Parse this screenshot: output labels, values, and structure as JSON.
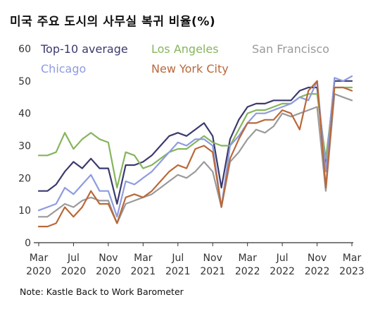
{
  "title": "미국 주요 도시의 사무실 복귀 비율(%)",
  "note": "Note: Kastle Back to Work Barometer",
  "chart_data": {
    "type": "line",
    "title": "미국 주요 도시의 사무실 복귀 비율(%)",
    "xlabel": "",
    "ylabel": "",
    "ylim": [
      0,
      60
    ],
    "yticks": [
      0,
      10,
      20,
      30,
      40,
      50,
      60
    ],
    "x_tick_labels": [
      [
        "Mar",
        "2020"
      ],
      [
        "Jul",
        "2020"
      ],
      [
        "Nov",
        "2020"
      ],
      [
        "Mar",
        "2021"
      ],
      [
        "Jul",
        "2021"
      ],
      [
        "Nov",
        "2021"
      ],
      [
        "Mar",
        "2022"
      ],
      [
        "Jul",
        "2022"
      ],
      [
        "Nov",
        "2022"
      ],
      [
        "Mar",
        "2023"
      ]
    ],
    "x": [
      "2020-03",
      "2020-04",
      "2020-05",
      "2020-06",
      "2020-07",
      "2020-08",
      "2020-09",
      "2020-10",
      "2020-11",
      "2020-12",
      "2021-01",
      "2021-02",
      "2021-03",
      "2021-04",
      "2021-05",
      "2021-06",
      "2021-07",
      "2021-08",
      "2021-09",
      "2021-10",
      "2021-11",
      "2021-12",
      "2022-01",
      "2022-02",
      "2022-03",
      "2022-04",
      "2022-05",
      "2022-06",
      "2022-07",
      "2022-08",
      "2022-09",
      "2022-10",
      "2022-11",
      "2022-12",
      "2023-01",
      "2023-02",
      "2023-03"
    ],
    "legend_placement": "top",
    "grid": false,
    "series": [
      {
        "name": "Top-10 average",
        "color": "#3b3a6e",
        "values": [
          16,
          16,
          18,
          22,
          25,
          23,
          26,
          23,
          23,
          12,
          24,
          24,
          25,
          27,
          30,
          33,
          34,
          33,
          35,
          37,
          33,
          17,
          32,
          38,
          42,
          43,
          43,
          44,
          44,
          44,
          47,
          48,
          48,
          24,
          50,
          50,
          50
        ]
      },
      {
        "name": "Los Angeles",
        "color": "#86b55c",
        "values": [
          27,
          27,
          28,
          34,
          29,
          32,
          34,
          32,
          31,
          17,
          28,
          27,
          23,
          24,
          26,
          28,
          29,
          29,
          31,
          33,
          31,
          30,
          30,
          35,
          40,
          41,
          41,
          42,
          43,
          43,
          45,
          46,
          46,
          26,
          48,
          48,
          48
        ]
      },
      {
        "name": "San Francisco",
        "color": "#9a9a9a",
        "values": [
          8,
          8,
          10,
          12,
          11,
          13,
          14,
          13,
          13,
          6,
          12,
          13,
          14,
          15,
          17,
          19,
          21,
          20,
          22,
          25,
          22,
          11,
          25,
          28,
          32,
          35,
          34,
          36,
          40,
          39,
          40,
          41,
          42,
          16,
          46,
          45,
          44
        ]
      },
      {
        "name": "Chicago",
        "color": "#8e9be0",
        "values": [
          10,
          11,
          12,
          17,
          15,
          18,
          21,
          16,
          16,
          8,
          19,
          18,
          20,
          22,
          25,
          28,
          31,
          30,
          32,
          32,
          30,
          11,
          30,
          33,
          37,
          40,
          40,
          41,
          42,
          43,
          45,
          44,
          50,
          22,
          51,
          50,
          51.5
        ]
      },
      {
        "name": "New York City",
        "color": "#b9683a",
        "values": [
          5,
          5,
          6,
          11,
          8,
          11,
          16,
          12,
          12,
          6,
          14,
          15,
          14,
          16,
          19,
          22,
          24,
          23,
          29,
          30,
          28,
          11,
          26,
          32,
          37,
          37,
          38,
          38,
          41,
          40,
          35,
          47,
          50,
          17,
          48,
          48,
          47
        ]
      }
    ]
  }
}
